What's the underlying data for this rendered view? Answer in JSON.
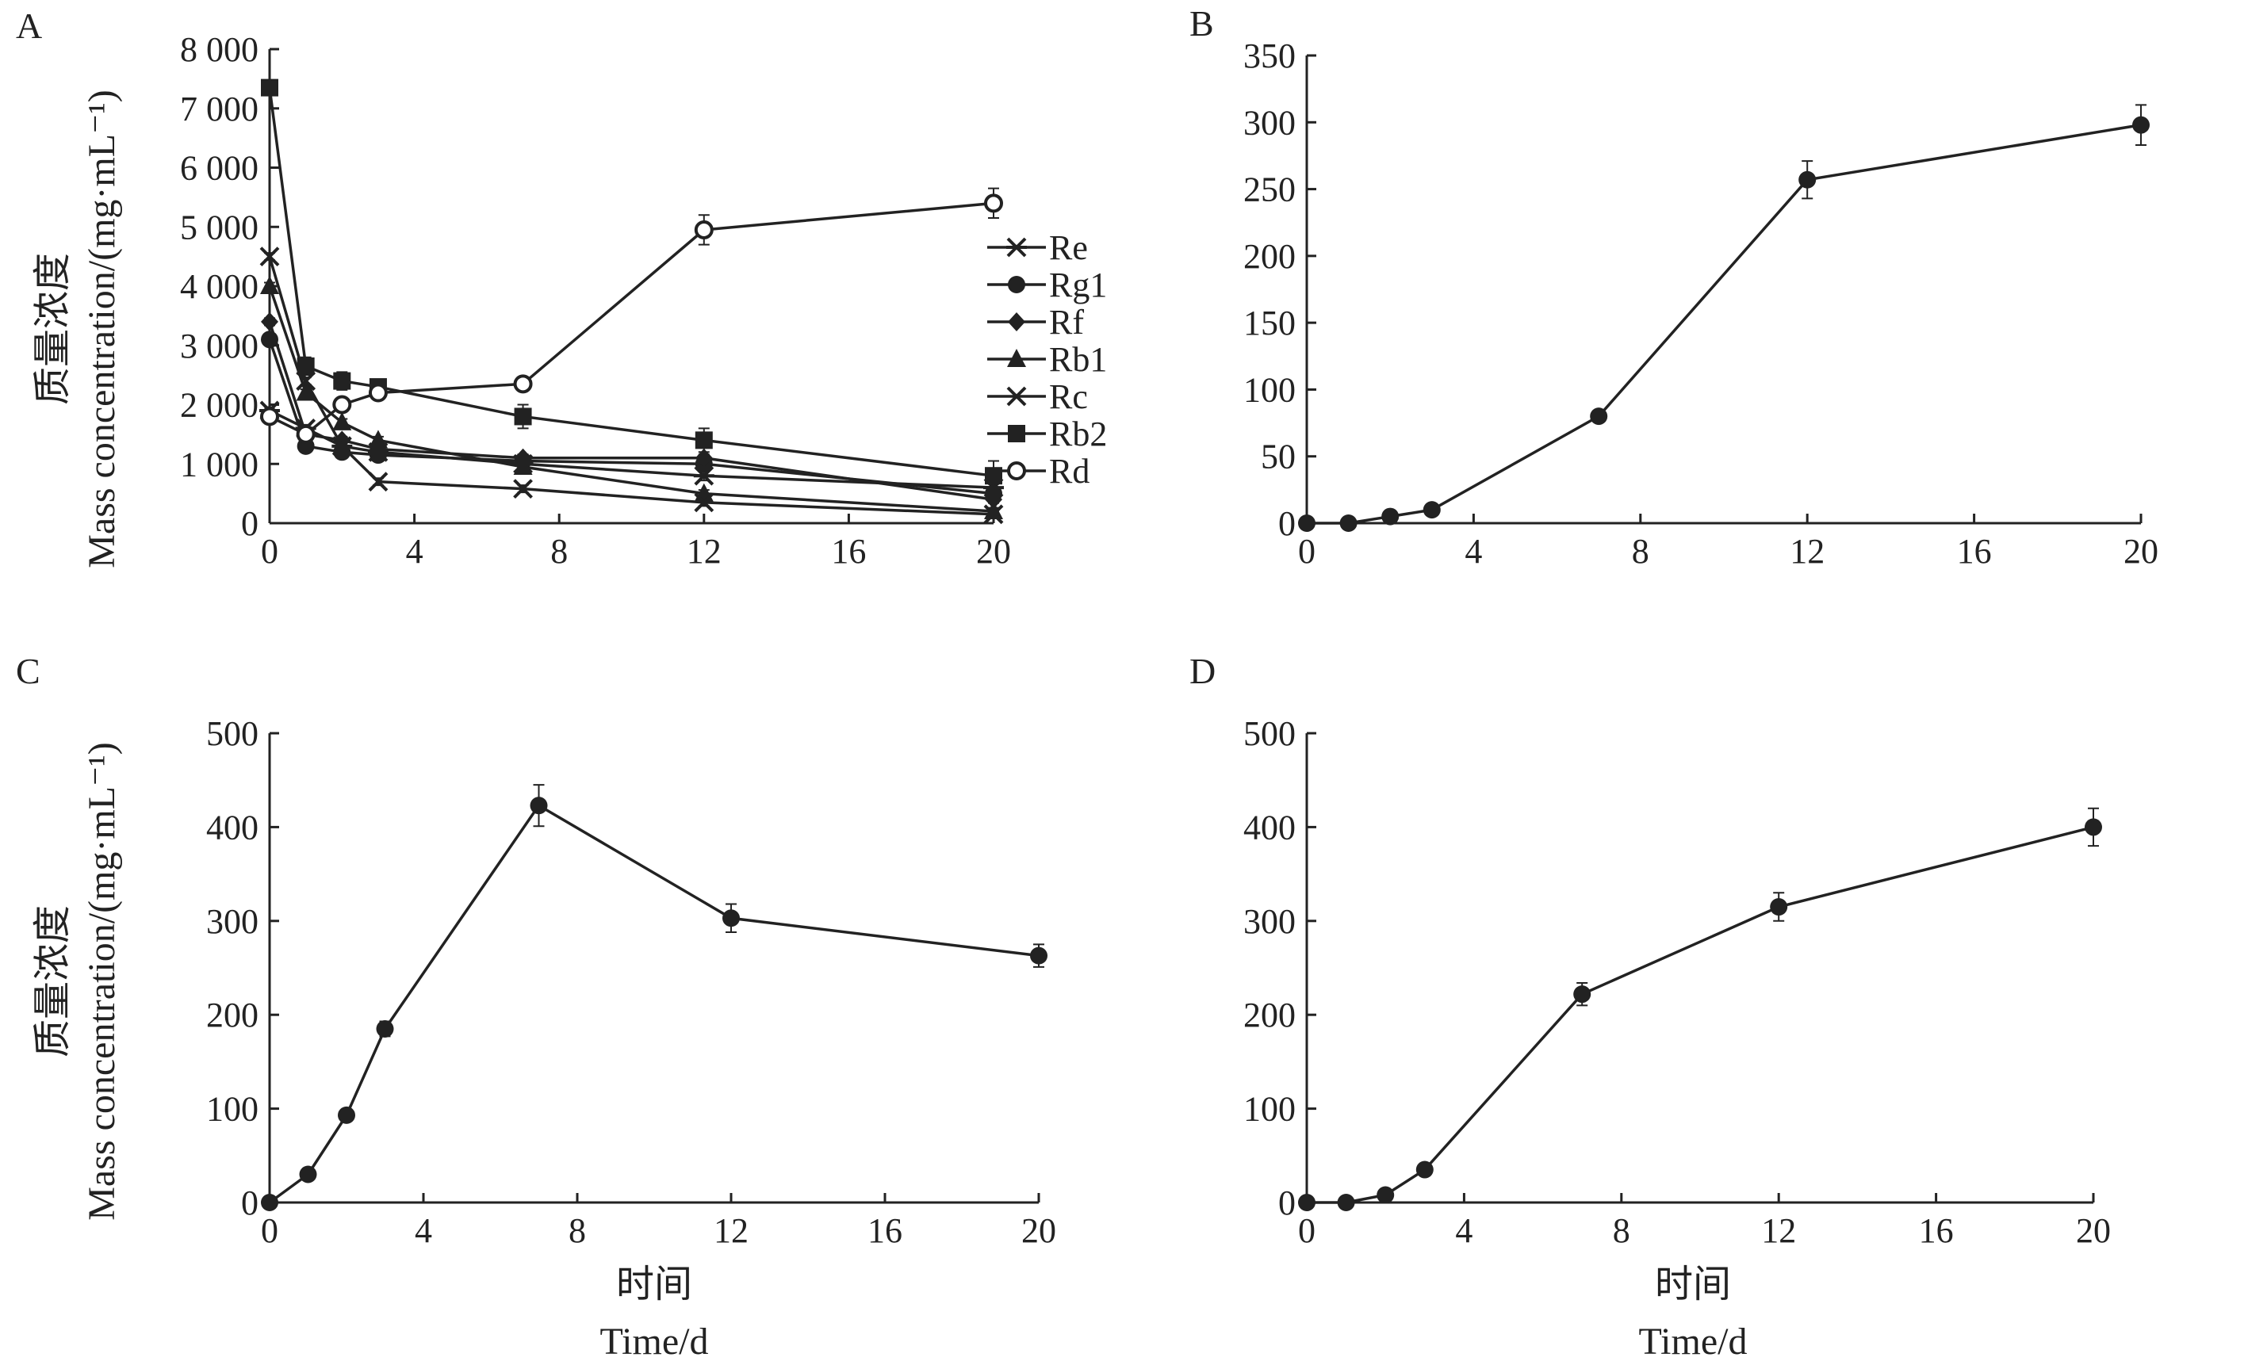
{
  "figure": {
    "panel_labels": [
      "A",
      "B",
      "C",
      "D"
    ],
    "ylabel_cn": "质量浓度",
    "ylabel_en": "Mass concentration/(mg·mL⁻¹)",
    "xlabel_cn": "时间",
    "xlabel_en": "Time/d",
    "colors": {
      "line": "#222222",
      "axis": "#222222",
      "background": "#ffffff"
    }
  },
  "chart_data": [
    {
      "panel": "A",
      "type": "line",
      "x": [
        0,
        1,
        2,
        3,
        7,
        12,
        20
      ],
      "xlim": [
        0,
        20
      ],
      "xticks": [
        0,
        4,
        8,
        12,
        16,
        20
      ],
      "ylim": [
        0,
        8000
      ],
      "yticks": [
        0,
        1000,
        2000,
        3000,
        4000,
        5000,
        6000,
        7000,
        8000
      ],
      "ytick_labels": [
        "0",
        "1 000",
        "2 000",
        "3 000",
        "4 000",
        "5 000",
        "6 000",
        "7 000",
        "8 000"
      ],
      "legend_placement": "center-right",
      "series": [
        {
          "name": "Re",
          "marker": "asterisk",
          "values": [
            1900,
            1600,
            1300,
            1200,
            1000,
            800,
            600
          ],
          "err": [
            60,
            60,
            60,
            60,
            60,
            80,
            60
          ]
        },
        {
          "name": "Rg1",
          "marker": "circle",
          "values": [
            3100,
            1300,
            1200,
            1150,
            1050,
            1000,
            500
          ],
          "err": [
            60,
            60,
            60,
            60,
            60,
            60,
            60
          ]
        },
        {
          "name": "Rf",
          "marker": "diamond",
          "values": [
            3400,
            1500,
            1400,
            1250,
            1100,
            1100,
            400
          ],
          "err": [
            60,
            60,
            60,
            60,
            60,
            60,
            60
          ]
        },
        {
          "name": "Rb1",
          "marker": "triangle",
          "values": [
            4000,
            2200,
            1700,
            1400,
            950,
            500,
            200
          ],
          "err": [
            60,
            60,
            60,
            60,
            60,
            60,
            60
          ]
        },
        {
          "name": "Rc",
          "marker": "x",
          "values": [
            4500,
            2400,
            1300,
            700,
            580,
            350,
            150
          ],
          "err": [
            60,
            60,
            60,
            60,
            60,
            60,
            60
          ]
        },
        {
          "name": "Rb2",
          "marker": "square",
          "values": [
            7350,
            2650,
            2400,
            2300,
            1800,
            1400,
            800
          ],
          "err": [
            100,
            150,
            150,
            100,
            200,
            200,
            250
          ]
        },
        {
          "name": "Rd",
          "marker": "circle-open",
          "values": [
            1800,
            1500,
            2000,
            2200,
            2350,
            4950,
            5400
          ],
          "err": [
            60,
            80,
            80,
            80,
            80,
            250,
            250
          ]
        }
      ]
    },
    {
      "panel": "B",
      "type": "line",
      "x": [
        0,
        1,
        2,
        3,
        7,
        12,
        20
      ],
      "xlim": [
        0,
        20
      ],
      "xticks": [
        0,
        4,
        8,
        12,
        16,
        20
      ],
      "ylim": [
        0,
        350
      ],
      "yticks": [
        0,
        50,
        100,
        150,
        200,
        250,
        300,
        350
      ],
      "series": [
        {
          "marker": "circle",
          "values": [
            0,
            0,
            5,
            10,
            80,
            257,
            298
          ],
          "err": [
            1,
            1,
            2,
            2,
            3,
            14,
            15
          ]
        }
      ]
    },
    {
      "panel": "C",
      "type": "line",
      "x": [
        0,
        1,
        2,
        3,
        7,
        12,
        20
      ],
      "xlim": [
        0,
        20
      ],
      "xticks": [
        0,
        4,
        8,
        12,
        16,
        20
      ],
      "ylim": [
        0,
        500
      ],
      "yticks": [
        0,
        100,
        200,
        300,
        400,
        500
      ],
      "series": [
        {
          "marker": "circle",
          "values": [
            0,
            30,
            93,
            185,
            423,
            303,
            263
          ],
          "err": [
            2,
            3,
            5,
            8,
            22,
            15,
            12
          ]
        }
      ]
    },
    {
      "panel": "D",
      "type": "line",
      "x": [
        0,
        1,
        2,
        3,
        7,
        12,
        20
      ],
      "xlim": [
        0,
        20
      ],
      "xticks": [
        0,
        4,
        8,
        12,
        16,
        20
      ],
      "ylim": [
        0,
        500
      ],
      "yticks": [
        0,
        100,
        200,
        300,
        400,
        500
      ],
      "series": [
        {
          "marker": "circle",
          "values": [
            0,
            0,
            8,
            35,
            222,
            315,
            400
          ],
          "err": [
            1,
            1,
            2,
            3,
            12,
            15,
            20
          ]
        }
      ]
    }
  ]
}
